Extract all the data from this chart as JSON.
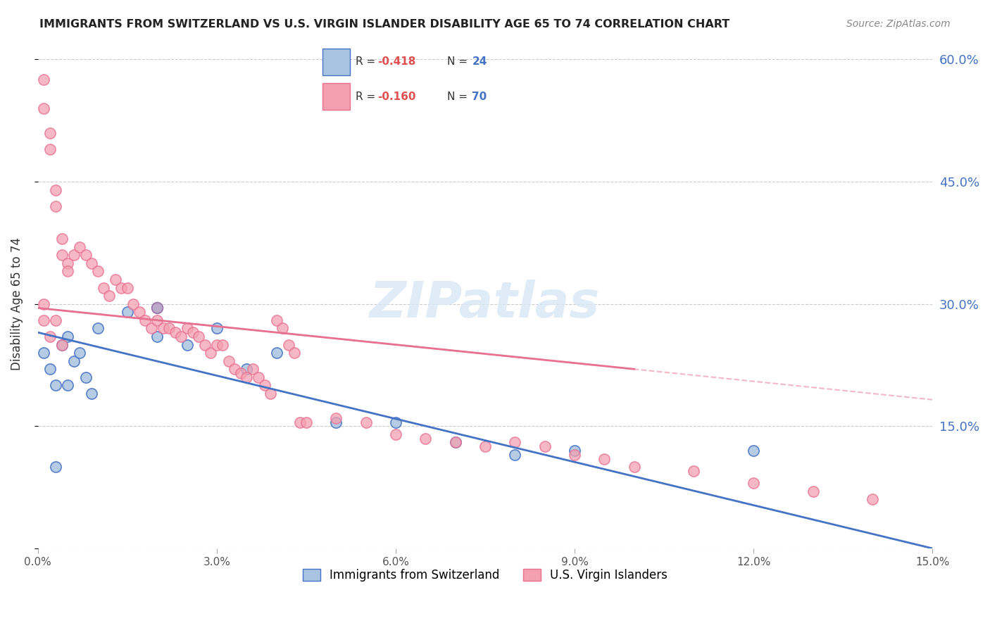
{
  "title": "IMMIGRANTS FROM SWITZERLAND VS U.S. VIRGIN ISLANDER DISABILITY AGE 65 TO 74 CORRELATION CHART",
  "source": "Source: ZipAtlas.com",
  "xlabel": "",
  "ylabel": "Disability Age 65 to 74",
  "legend_label1": "Immigrants from Switzerland",
  "legend_label2": "U.S. Virgin Islanders",
  "R1": -0.418,
  "N1": 24,
  "R2": -0.16,
  "N2": 70,
  "color_blue": "#a8c4e0",
  "color_pink": "#f4a0b0",
  "color_blue_line": "#4472c4",
  "color_pink_line": "#e87090",
  "color_purple": "#9b79b0",
  "watermark": "ZIPatlas",
  "xlim": [
    0.0,
    0.15
  ],
  "ylim": [
    0.0,
    0.6
  ],
  "xticks": [
    0.0,
    0.03,
    0.06,
    0.09,
    0.12,
    0.15
  ],
  "yticks": [
    0.0,
    0.15,
    0.3,
    0.45,
    0.6
  ],
  "right_yticks": [
    0.15,
    0.3,
    0.45,
    0.6
  ],
  "blue_x": [
    0.001,
    0.002,
    0.003,
    0.004,
    0.005,
    0.006,
    0.007,
    0.008,
    0.009,
    0.01,
    0.015,
    0.02,
    0.025,
    0.03,
    0.035,
    0.04,
    0.05,
    0.06,
    0.07,
    0.08,
    0.09,
    0.12,
    0.005,
    0.003
  ],
  "blue_y": [
    0.24,
    0.22,
    0.2,
    0.25,
    0.26,
    0.23,
    0.24,
    0.21,
    0.19,
    0.27,
    0.29,
    0.26,
    0.25,
    0.27,
    0.22,
    0.24,
    0.155,
    0.155,
    0.13,
    0.115,
    0.12,
    0.12,
    0.2,
    0.1
  ],
  "pink_x": [
    0.001,
    0.001,
    0.002,
    0.002,
    0.003,
    0.003,
    0.004,
    0.004,
    0.005,
    0.005,
    0.006,
    0.007,
    0.008,
    0.009,
    0.01,
    0.011,
    0.012,
    0.013,
    0.014,
    0.015,
    0.016,
    0.017,
    0.018,
    0.019,
    0.02,
    0.021,
    0.022,
    0.023,
    0.024,
    0.025,
    0.026,
    0.027,
    0.028,
    0.029,
    0.03,
    0.031,
    0.032,
    0.033,
    0.034,
    0.035,
    0.036,
    0.037,
    0.038,
    0.039,
    0.04,
    0.041,
    0.042,
    0.043,
    0.044,
    0.045,
    0.05,
    0.055,
    0.06,
    0.065,
    0.07,
    0.075,
    0.08,
    0.085,
    0.09,
    0.095,
    0.1,
    0.11,
    0.12,
    0.13,
    0.14,
    0.001,
    0.001,
    0.002,
    0.003,
    0.004
  ],
  "pink_y": [
    0.575,
    0.54,
    0.51,
    0.49,
    0.44,
    0.42,
    0.38,
    0.36,
    0.35,
    0.34,
    0.36,
    0.37,
    0.36,
    0.35,
    0.34,
    0.32,
    0.31,
    0.33,
    0.32,
    0.32,
    0.3,
    0.29,
    0.28,
    0.27,
    0.28,
    0.27,
    0.27,
    0.265,
    0.26,
    0.27,
    0.265,
    0.26,
    0.25,
    0.24,
    0.25,
    0.25,
    0.23,
    0.22,
    0.215,
    0.21,
    0.22,
    0.21,
    0.2,
    0.19,
    0.28,
    0.27,
    0.25,
    0.24,
    0.155,
    0.155,
    0.16,
    0.155,
    0.14,
    0.135,
    0.13,
    0.125,
    0.13,
    0.125,
    0.115,
    0.11,
    0.1,
    0.095,
    0.08,
    0.07,
    0.06,
    0.3,
    0.28,
    0.26,
    0.28,
    0.25
  ]
}
